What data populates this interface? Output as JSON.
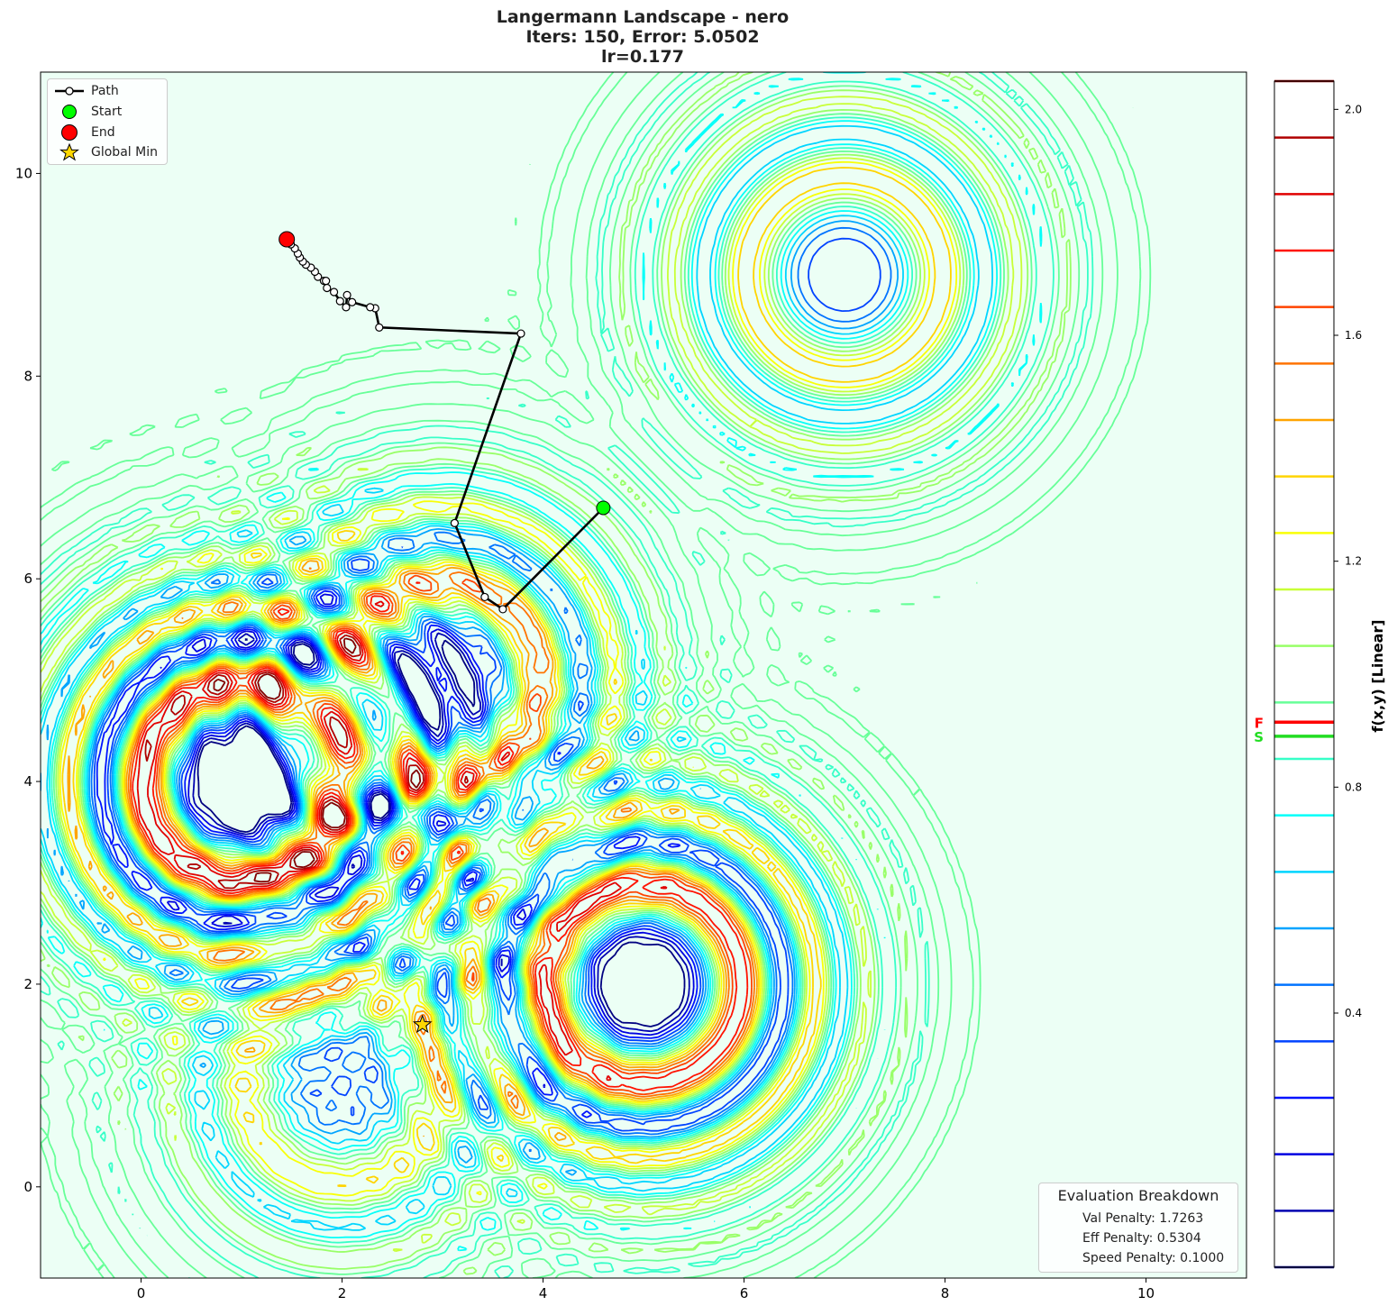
{
  "chart_data": {
    "type": "contour",
    "title_lines": [
      "Langermann Landscape - nero",
      "Iters: 150, Error: 5.0502",
      "lr=0.177"
    ],
    "xlim": [
      -1,
      11
    ],
    "ylim": [
      -0.9,
      11
    ],
    "x_ticks": [
      0,
      2,
      4,
      6,
      8,
      10
    ],
    "y_ticks": [
      0,
      2,
      4,
      6,
      8,
      10
    ],
    "x_tick_labels": [
      "0",
      "2",
      "4",
      "6",
      "8",
      "10"
    ],
    "y_tick_labels": [
      "0",
      "2",
      "4",
      "6",
      "8",
      "10"
    ],
    "grid": false,
    "colorbar": {
      "label": "f(x,y) [Linear]",
      "range": [
        -0.05,
        2.05
      ],
      "ticks": [
        0.4,
        0.8,
        1.2,
        1.6,
        2.0
      ],
      "tick_labels": [
        "0.4",
        "0.8",
        "1.2",
        "1.6",
        "2.0"
      ],
      "levels": [
        -0.05,
        0.05,
        0.15,
        0.25,
        0.35,
        0.45,
        0.55,
        0.65,
        0.75,
        0.85,
        0.95,
        1.05,
        1.15,
        1.25,
        1.35,
        1.45,
        1.55,
        1.65,
        1.75,
        1.85,
        1.95,
        2.05
      ],
      "markers": [
        {
          "label": "F",
          "value": 0.915,
          "color": "#ff0000"
        },
        {
          "label": "S",
          "value": 0.89,
          "color": "#22dd22"
        }
      ]
    },
    "landscape": {
      "function": "Langermann",
      "centers": [
        [
          2,
          1
        ],
        [
          7,
          9
        ],
        [
          1,
          4
        ],
        [
          5,
          2
        ],
        [
          3,
          5
        ]
      ],
      "local_peaks_shown": [
        [
          2,
          1
        ],
        [
          7,
          9
        ],
        [
          1,
          4
        ],
        [
          5,
          2
        ]
      ]
    },
    "path": {
      "name": "Path",
      "color": "#000000",
      "x": [
        4.6,
        3.6,
        3.42,
        3.12,
        3.78,
        2.37,
        2.33,
        2.28,
        2.1,
        2.05,
        2.04,
        1.98,
        1.92,
        1.85,
        1.82,
        1.84,
        1.76,
        1.73,
        1.69,
        1.64,
        1.61,
        1.58,
        1.56,
        1.53,
        1.49,
        1.48,
        1.43
      ],
      "y": [
        6.7,
        5.7,
        5.82,
        6.55,
        8.42,
        8.48,
        8.67,
        8.68,
        8.73,
        8.8,
        8.68,
        8.74,
        8.83,
        8.87,
        8.94,
        8.94,
        8.98,
        9.03,
        9.07,
        9.1,
        9.13,
        9.17,
        9.21,
        9.26,
        9.3,
        9.33,
        9.36
      ]
    },
    "start": {
      "name": "Start",
      "x": 4.6,
      "y": 6.7,
      "color": "#00ff00"
    },
    "end": {
      "name": "End",
      "x": 1.45,
      "y": 9.35,
      "color": "#ff0000"
    },
    "global_min": {
      "name": "Global Min",
      "x": 2.8,
      "y": 1.6,
      "color": "#ffd700"
    },
    "legend_position": "top-left"
  },
  "legend": {
    "path": "Path",
    "start": "Start",
    "end": "End",
    "global_min": "Global Min"
  },
  "evaluation": {
    "header": "Evaluation Breakdown",
    "val_penalty": "Val Penalty: 1.7263",
    "eff_penalty": "Eff Penalty: 0.5304",
    "speed_penalty": "Speed Penalty: 0.1000"
  },
  "colors": {
    "background_fill": "#ecfff5",
    "path": "#000000"
  }
}
